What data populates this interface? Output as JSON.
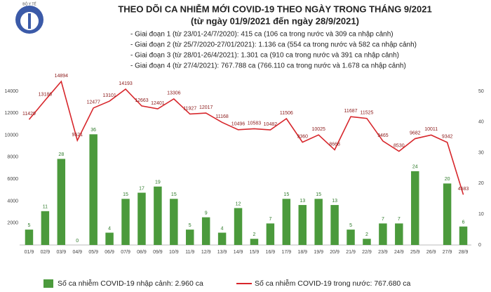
{
  "logo_text": "BỘ Y TẾ",
  "chart_data": {
    "type": "bar-line",
    "title": "THEO DÕI CA NHIỄM MỚI COVID-19 THEO NGÀY TRONG THÁNG 9/2021",
    "subtitle": "(từ ngày 01/9/2021 đến ngày 28/9/2021)",
    "annotations": [
      "- Giai đoạn 1 (từ 23/01-24/7/2020): 415 ca (106 ca trong nước và 309 ca nhập cảnh)",
      "- Giai đoạn 2 (từ 25/7/2020-27/01/2021): 1.136 ca (554 ca trong nước và 582 ca nhập cảnh)",
      "- Giai đoạn 3 (từ 28/01-26/4/2021): 1.301 ca (910 ca trong nước và 391 ca nhập cảnh)",
      "- Giai đoạn 4 (từ 27/4/2021): 767.788 ca (766.110 ca trong nước và 1.678 ca nhập cảnh)"
    ],
    "categories": [
      "01/9",
      "02/9",
      "03/9",
      "04/9",
      "05/9",
      "06/9",
      "07/9",
      "08/9",
      "09/9",
      "10/9",
      "11/9",
      "12/9",
      "13/9",
      "14/9",
      "15/9",
      "16/9",
      "17/9",
      "18/9",
      "19/9",
      "20/9",
      "21/9",
      "22/9",
      "23/9",
      "24/9",
      "25/9",
      "26/9",
      "27/9",
      "28/9"
    ],
    "series": [
      {
        "name": "Số ca nhiễm COVID-19 nhập cảnh: 2.960 ca",
        "kind": "bar",
        "axis": "y2",
        "color": "#4b9a3c",
        "values": [
          5,
          11,
          28,
          0,
          36,
          4,
          15,
          17,
          19,
          15,
          5,
          9,
          4,
          12,
          2,
          7,
          15,
          13,
          15,
          13,
          5,
          2,
          7,
          7,
          24,
          null,
          20,
          6
        ]
      },
      {
        "name": "Số ca nhiễm COVID-19 trong nước: 767.680 ca",
        "kind": "line",
        "axis": "y",
        "color": "#d7262b",
        "values": [
          11429,
          13186,
          14894,
          9521,
          12477,
          13101,
          14193,
          12663,
          12401,
          13306,
          11927,
          12017,
          11168,
          10496,
          10583,
          10482,
          11506,
          9360,
          10025,
          8668,
          11687,
          11525,
          9465,
          8530,
          9682,
          10011,
          9342,
          4583
        ]
      }
    ],
    "ylim": [
      0,
      14000
    ],
    "yticks": [
      2000,
      4000,
      6000,
      8000,
      10000,
      12000,
      14000
    ],
    "y2lim": [
      0,
      50
    ],
    "y2ticks": [
      0,
      10,
      20,
      30,
      40,
      50
    ]
  }
}
